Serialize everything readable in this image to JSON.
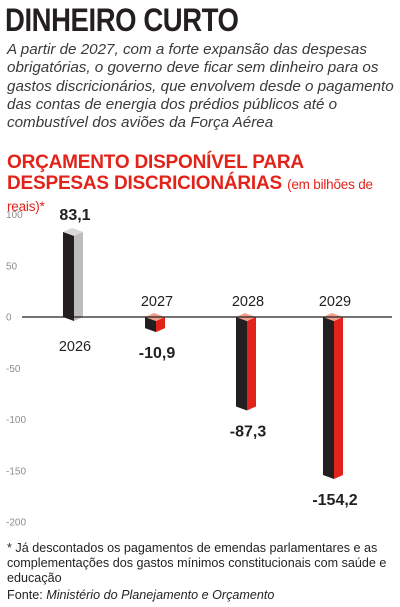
{
  "headline": "DINHEIRO CURTO",
  "intro": "A partir de 2027, com a forte expansão das despesas obrigatórias, o governo deve ficar sem dinheiro para os gastos discricionários, que envolvem desde o pagamento das contas de energia dos prédios públicos até o combustível dos aviões da Força Aérea",
  "footnote": "* Já descontados os pagamentos de emendas parlamentares e as complementações dos gastos mínimos constitucionais com saúde e educação",
  "source": {
    "label": "Fonte:",
    "name": "Ministério do Planejamento e Orçamento"
  },
  "chart_data": {
    "type": "bar",
    "title": "ORÇAMENTO DISPONÍVEL PARA DESPESAS DISCRICIONÁRIAS",
    "subtitle": "(em bilhões de reais)*",
    "categories": [
      "2026",
      "2027",
      "2028",
      "2029"
    ],
    "values": [
      83.1,
      -10.9,
      -87.3,
      -154.2
    ],
    "value_labels": [
      "83,1",
      "-10,9",
      "-87,3",
      "-154,2"
    ],
    "yticks": [
      100,
      50,
      0,
      -50,
      -100,
      -150,
      -200
    ],
    "ylim": [
      -200,
      100
    ],
    "grid": false,
    "colors": {
      "positive_front": "#231f20",
      "positive_side": "#bdbdbd",
      "positive_top": "#d9d9d9",
      "negative_front": "#231f20",
      "negative_side": "#e2231a",
      "top_accent": "#f2a08c",
      "axis": "#231f20",
      "accent": "#e2231a"
    }
  }
}
